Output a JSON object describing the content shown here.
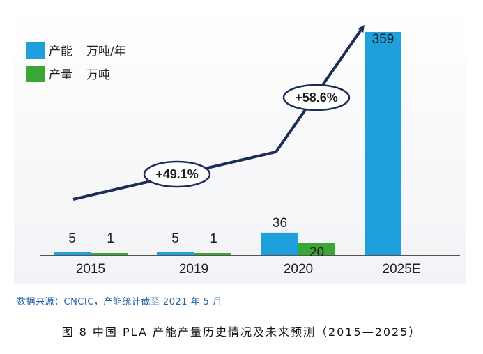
{
  "chart_data": {
    "type": "bar",
    "categories": [
      "2015",
      "2019",
      "2020",
      "2025E"
    ],
    "series": [
      {
        "name": "产能",
        "unit": "万吨/年",
        "color": "#1fa0dc",
        "values": [
          5,
          5,
          36,
          359
        ]
      },
      {
        "name": "产量",
        "unit": "万吨",
        "color": "#3aa635",
        "values": [
          1,
          1,
          20,
          null
        ]
      }
    ],
    "ylim": [
      0,
      359
    ],
    "grid": false,
    "legend_position": "top-left",
    "annotations": [
      {
        "text": "+49.1%"
      },
      {
        "text": "+58.6%"
      }
    ],
    "arrow_color": "#1c2d57"
  },
  "source_note": "数据来源：CNCIC，产能统计截至 2021 年 5 月",
  "figure_caption": "图 8  中国 PLA 产能产量历史情况及未来预测（2015—2025）"
}
